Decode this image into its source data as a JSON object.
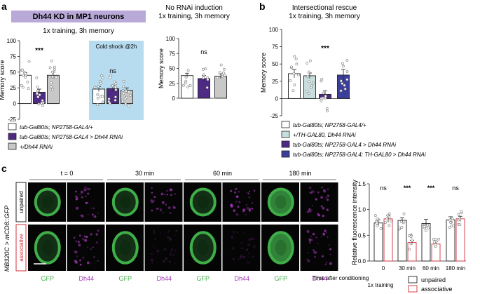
{
  "panel_a": {
    "letter": "a",
    "banner": "Dh44 KD in MP1 neurons",
    "subtitle": "1x training, 3h memory",
    "cold_shock_label": "Cold shock @2h",
    "right_title_1": "No RNAi induction",
    "right_title_2": "1x training, 3h memory",
    "legend": [
      "tub-Gal80ts; NP2758-GAL4/+",
      "tub-Gal80ts; NP2758-GAL4 > Dh44 RNAi",
      "+/Dh44 RNAi"
    ]
  },
  "panel_b": {
    "letter": "b",
    "title_1": "Intersectional rescue",
    "title_2": "1x training, 3h memory",
    "legend": [
      "tub-Gal80ts; NP2758-GAL4/+",
      "+/TH-GAL80, Dh44 RNAi",
      "tub-Gal80ts; NP2758-GAL4 > Dh44 RNAi",
      "tub-Gal80ts; NP2758-GAL4; TH-GAL80 > Dh44 RNAi"
    ]
  },
  "panel_c": {
    "letter": "c",
    "ylabel_left": "MB320C > mCD8::GFP",
    "row_labels": [
      "unpaired",
      "associative"
    ],
    "time_labels": [
      "t = 0",
      "30 min",
      "60 min",
      "180 min"
    ],
    "channel_labels": [
      "GFP",
      "Dh44",
      "GFP",
      "Dh44",
      "GFP",
      "Dh44",
      "GFP",
      "Dh44"
    ],
    "xlabel": "Time after conditioning",
    "training_label": "1x training",
    "legend": [
      "unpaired",
      "associative"
    ]
  },
  "colors": {
    "white_bar": "#ffffff",
    "purple": "#4e2a84",
    "grey": "#c8c8c8",
    "teal_light": "#c8dede",
    "blue_purple": "#3c3f9a",
    "red": "#d62f3a",
    "cold_shock_bg": "#b7dcef",
    "banner_bg": "#b9a9d8",
    "gfp": "#3fae49",
    "dh44": "#a23ab8"
  },
  "chart_data": [
    {
      "id": "a_left",
      "type": "bar",
      "ylabel": "Memory score",
      "ylim": [
        -25,
        100
      ],
      "yticks": [
        -25,
        0,
        25,
        50,
        75,
        100
      ],
      "groups": [
        {
          "bars": [
            45,
            18,
            45
          ],
          "errors": [
            4,
            5,
            5
          ],
          "significance": "***"
        },
        {
          "bars": [
            23,
            24,
            21
          ],
          "errors": [
            4,
            5,
            4
          ],
          "significance": "ns"
        }
      ]
    },
    {
      "id": "a_right",
      "type": "bar",
      "ylabel": "Memory score",
      "ylim": [
        0,
        100
      ],
      "yticks": [
        0,
        25,
        50,
        75,
        100
      ],
      "bars": [
        38,
        33,
        37
      ],
      "errors": [
        4,
        5,
        4
      ],
      "significance": "ns"
    },
    {
      "id": "b",
      "type": "bar",
      "ylabel": "Memory score",
      "ylim": [
        -25,
        100
      ],
      "yticks": [
        -25,
        0,
        25,
        50,
        75,
        100
      ],
      "bars": [
        36,
        33,
        6,
        34
      ],
      "errors": [
        6,
        4,
        5,
        8
      ],
      "significance": "***"
    },
    {
      "id": "c",
      "type": "bar",
      "ylabel": "Relative fluorescence intensity",
      "ylim": [
        0,
        1.5
      ],
      "yticks": [
        0.0,
        0.5,
        1.0,
        1.5
      ],
      "categories": [
        "0",
        "30 min",
        "60 min",
        "180 min"
      ],
      "series": [
        {
          "name": "unpaired",
          "values": [
            0.74,
            0.79,
            0.73,
            0.8
          ],
          "errors": [
            0.06,
            0.05,
            0.08,
            0.06
          ]
        },
        {
          "name": "associative",
          "values": [
            0.82,
            0.36,
            0.33,
            0.82
          ],
          "errors": [
            0.07,
            0.04,
            0.05,
            0.05
          ]
        }
      ],
      "significance": [
        "ns",
        "***",
        "***",
        "ns"
      ]
    }
  ]
}
